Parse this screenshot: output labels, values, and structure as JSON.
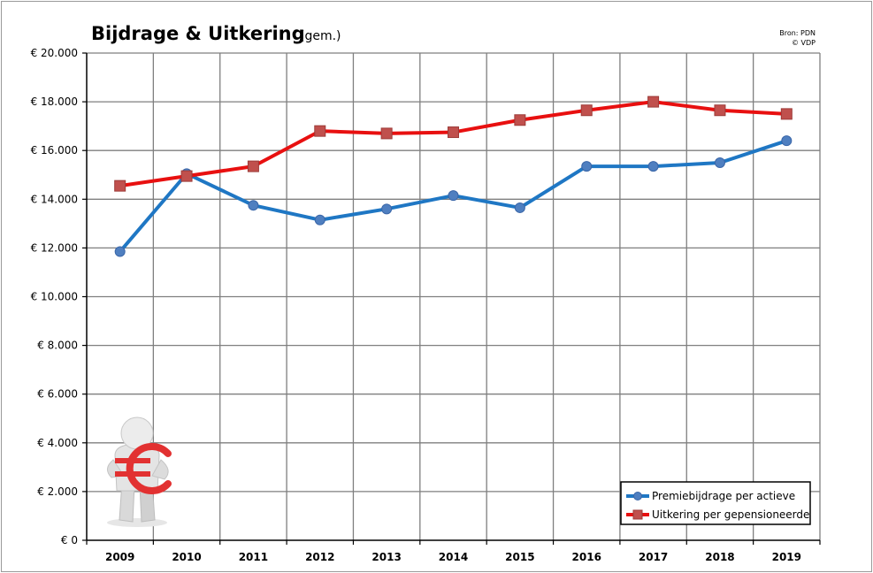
{
  "chart_data": {
    "type": "line",
    "title": "Bijdrage & Uitkering",
    "subtitle": "(gem.)",
    "source_line1": "Bron: PDN",
    "source_line2": "© VDP",
    "x": [
      "2009",
      "2010",
      "2011",
      "2012",
      "2013",
      "2014",
      "2015",
      "2016",
      "2017",
      "2018",
      "2019"
    ],
    "ylim": [
      0,
      20000
    ],
    "yticks": [
      0,
      2000,
      4000,
      6000,
      8000,
      10000,
      12000,
      14000,
      16000,
      18000,
      20000
    ],
    "ytick_labels": [
      "€ 0",
      "€ 2.000",
      "€ 4.000",
      "€ 6.000",
      "€ 8.000",
      "€ 10.000",
      "€ 12.000",
      "€ 14.000",
      "€ 16.000",
      "€ 18.000",
      "€ 20.000"
    ],
    "grid": true,
    "legend_position": "bottom-right",
    "series": [
      {
        "name": "Premiebijdrage per actieve",
        "color": "#1f77c4",
        "marker": "circle",
        "values": [
          11850,
          15050,
          13750,
          13150,
          13600,
          14150,
          13650,
          15350,
          15350,
          15500,
          16400
        ]
      },
      {
        "name": "Uitkering per gepensioneerde",
        "color": "#e81010",
        "marker": "square",
        "values": [
          14550,
          14950,
          15350,
          16800,
          16700,
          16750,
          17250,
          17650,
          18000,
          17650,
          17500
        ]
      }
    ]
  },
  "illustration": {
    "icon": "person-holding-euro-sign-icon"
  }
}
